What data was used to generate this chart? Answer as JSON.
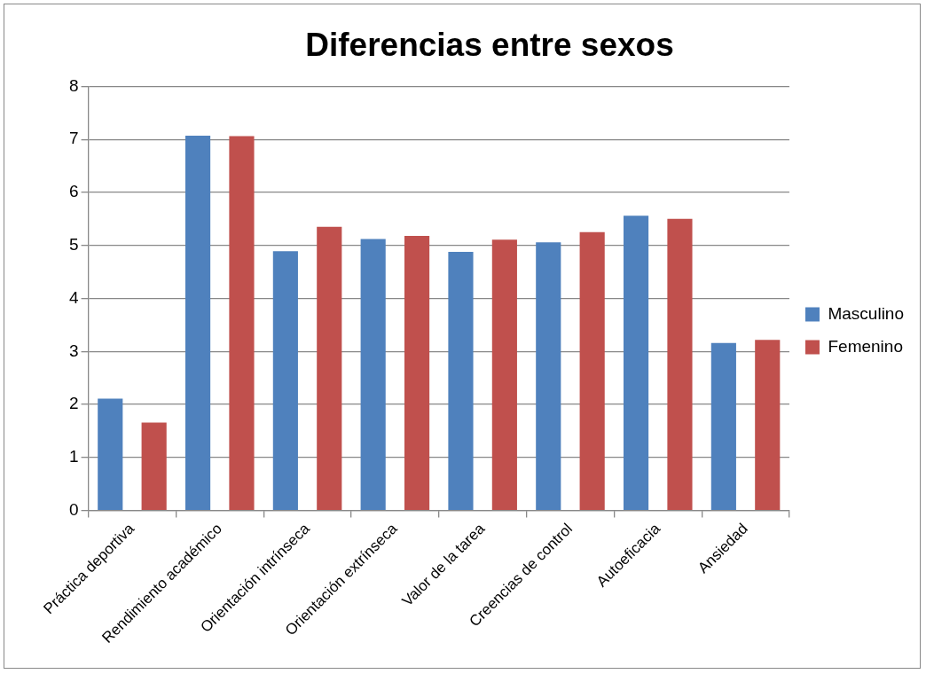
{
  "chart_data": {
    "type": "bar",
    "title": "Diferencias entre sexos",
    "categories": [
      "Práctica deportiva",
      "Rendimiento académico",
      "Orientación intrínseca",
      "Orientación extrínseca",
      "Valor de la tarea",
      "Creencias de control",
      "Autoeficacia",
      "Ansiedad"
    ],
    "series": [
      {
        "name": "Masculino",
        "color": "#4f81bd",
        "values": [
          2.11,
          7.07,
          4.89,
          5.12,
          4.88,
          5.06,
          5.56,
          3.16
        ]
      },
      {
        "name": "Femenino",
        "color": "#c0504d",
        "values": [
          1.66,
          7.06,
          5.35,
          5.18,
          5.11,
          5.25,
          5.5,
          3.22
        ]
      }
    ],
    "ylim": [
      0,
      8
    ],
    "yticks": [
      0,
      1,
      2,
      3,
      4,
      5,
      6,
      7,
      8
    ],
    "grid": "y",
    "legend": "right"
  }
}
